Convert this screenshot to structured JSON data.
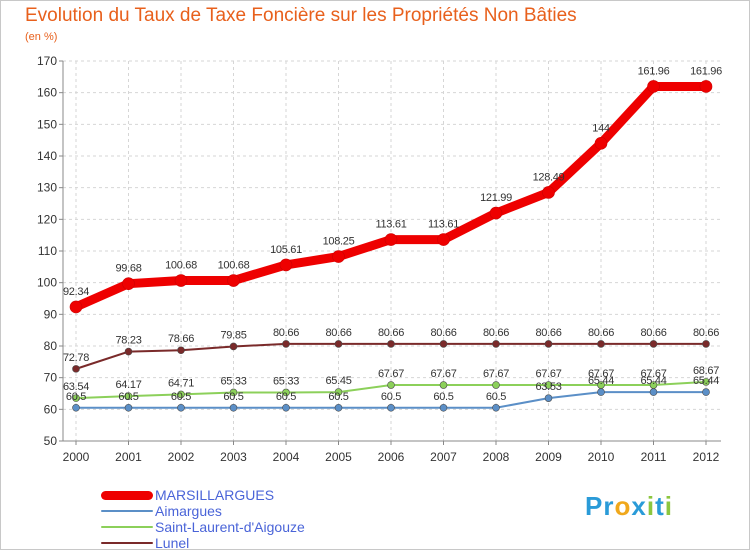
{
  "title": "Evolution du Taux de Taxe Foncière sur les Propriétés Non Bâties",
  "unit": "(en %)",
  "logo": {
    "text": "Proxiti",
    "letters": [
      "P",
      "r",
      "o",
      "x",
      "i",
      "t",
      "i"
    ],
    "colors": [
      "#2a9bd8",
      "#2a9bd8",
      "#f0a81c",
      "#2a9bd8",
      "#8cc63f",
      "#2a9bd8",
      "#8cc63f"
    ]
  },
  "chart_data": {
    "type": "line",
    "title": "Evolution du Taux de Taxe Foncière sur les Propriétés Non Bâties",
    "ylabel": "(en %)",
    "xlabel": "",
    "x": [
      "2000",
      "2001",
      "2002",
      "2003",
      "2004",
      "2005",
      "2006",
      "2007",
      "2008",
      "2009",
      "2010",
      "2011",
      "2012"
    ],
    "ylim": [
      50,
      170
    ],
    "yticks": [
      50,
      60,
      70,
      80,
      90,
      100,
      110,
      120,
      130,
      140,
      150,
      160,
      170
    ],
    "grid": "horizontal dashed",
    "legend": "bottom-left",
    "series": [
      {
        "name": "MARSILLARGUES",
        "color": "#ee0000",
        "values": [
          92.34,
          99.68,
          100.68,
          100.68,
          105.61,
          108.25,
          113.61,
          113.61,
          121.99,
          128.49,
          144,
          161.96,
          161.96
        ],
        "labels": [
          "92.34",
          "99.68",
          "100.68",
          "100.68",
          "105.61",
          "108.25",
          "113.61",
          "113.61",
          "121.99",
          "128.49",
          "144",
          "161.96",
          "161.96"
        ]
      },
      {
        "name": "Aimargues",
        "color": "#5b8fc7",
        "values": [
          60.5,
          60.5,
          60.5,
          60.5,
          60.5,
          60.5,
          60.5,
          60.5,
          60.5,
          63.53,
          65.44,
          65.44,
          65.44
        ],
        "labels": [
          "60.5",
          "60.5",
          "60.5",
          "60.5",
          "60.5",
          "60.5",
          "60.5",
          "60.5",
          "60.5",
          "63.53",
          "65.44",
          "65.44",
          "65.44"
        ]
      },
      {
        "name": "Saint-Laurent-d'Aigouze",
        "color": "#8cd05a",
        "values": [
          63.54,
          64.17,
          64.71,
          65.33,
          65.33,
          65.45,
          67.67,
          67.67,
          67.67,
          67.67,
          67.67,
          67.67,
          68.67
        ],
        "labels": [
          "63.54",
          "64.17",
          "64.71",
          "65.33",
          "65.33",
          "65.45",
          "67.67",
          "67.67",
          "67.67",
          "67.67",
          "67.67",
          "67.67",
          "68.67"
        ]
      },
      {
        "name": "Lunel",
        "color": "#7a2a2a",
        "values": [
          72.78,
          78.23,
          78.66,
          79.85,
          80.66,
          80.66,
          80.66,
          80.66,
          80.66,
          80.66,
          80.66,
          80.66,
          80.66
        ],
        "labels": [
          "72.78",
          "78.23",
          "78.66",
          "79.85",
          "80.66",
          "80.66",
          "80.66",
          "80.66",
          "80.66",
          "80.66",
          "80.66",
          "80.66",
          "80.66"
        ]
      }
    ]
  }
}
